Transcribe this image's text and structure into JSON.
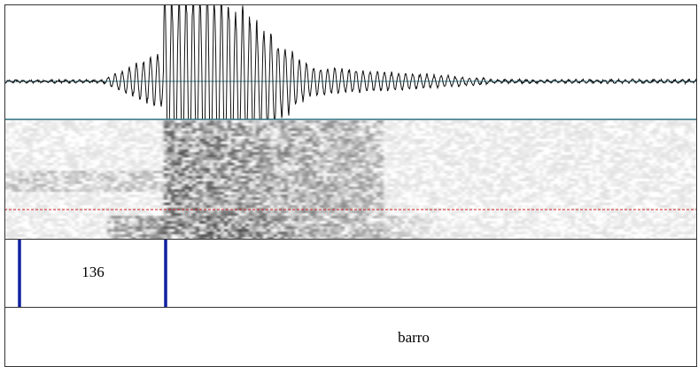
{
  "tiers": [
    {
      "label": "136"
    },
    {
      "label": "barro"
    }
  ]
}
